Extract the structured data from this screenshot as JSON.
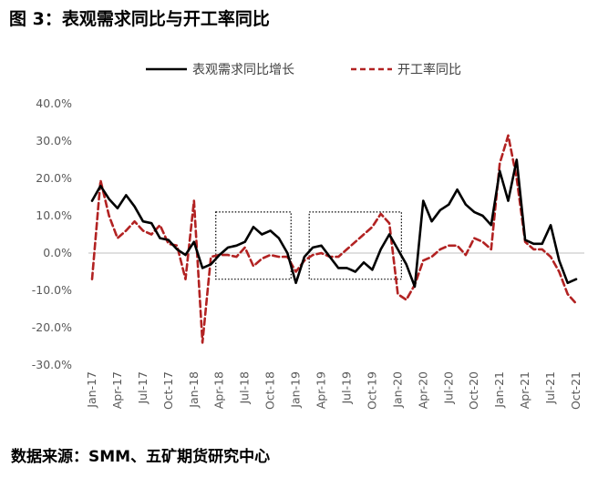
{
  "figure_title": "图 3：表观需求同比与开工率同比",
  "source_note": "数据来源：SMM、五矿期货研究中心",
  "chart_data": {
    "type": "line",
    "title": "图 3：表观需求同比与开工率同比",
    "xlabel": "",
    "ylabel": "",
    "ylim": [
      -30,
      40
    ],
    "y_ticks": [
      "-30.0%",
      "-20.0%",
      "-10.0%",
      "0.0%",
      "10.0%",
      "20.0%",
      "30.0%",
      "40.0%"
    ],
    "grid": false,
    "legend_position": "top",
    "x": [
      "Jan-17",
      "Feb-17",
      "Mar-17",
      "Apr-17",
      "May-17",
      "Jun-17",
      "Jul-17",
      "Aug-17",
      "Sep-17",
      "Oct-17",
      "Nov-17",
      "Dec-17",
      "Jan-18",
      "Feb-18",
      "Mar-18",
      "Apr-18",
      "May-18",
      "Jun-18",
      "Jul-18",
      "Aug-18",
      "Sep-18",
      "Oct-18",
      "Nov-18",
      "Dec-18",
      "Jan-19",
      "Feb-19",
      "Mar-19",
      "Apr-19",
      "May-19",
      "Jun-19",
      "Jul-19",
      "Aug-19",
      "Sep-19",
      "Oct-19",
      "Nov-19",
      "Dec-19",
      "Jan-20",
      "Feb-20",
      "Mar-20",
      "Apr-20",
      "May-20",
      "Jun-20",
      "Jul-20",
      "Aug-20",
      "Sep-20",
      "Oct-20",
      "Nov-20",
      "Dec-20",
      "Jan-21",
      "Feb-21",
      "Mar-21",
      "Apr-21",
      "May-21",
      "Jun-21",
      "Jul-21",
      "Aug-21",
      "Sep-21",
      "Oct-21"
    ],
    "x_tick_labels": [
      "Jan-17",
      "Apr-17",
      "Jul-17",
      "Oct-17",
      "Jan-18",
      "Apr-18",
      "Jul-18",
      "Oct-18",
      "Jan-19",
      "Apr-19",
      "Jul-19",
      "Oct-19",
      "Jan-20",
      "Apr-20",
      "Jul-20",
      "Oct-20",
      "Jan-21",
      "Apr-21",
      "Jul-21",
      "Oct-21"
    ],
    "series": [
      {
        "name": "表观需求同比增长",
        "color": "#000000",
        "style": "solid",
        "values": [
          14,
          18,
          14.5,
          12,
          15.5,
          12.5,
          8.5,
          8,
          4,
          3.5,
          1,
          -0.5,
          3,
          -4,
          -3,
          -0.5,
          1.5,
          2,
          3,
          7,
          5,
          6,
          4,
          0,
          -8,
          -1,
          1.5,
          2,
          -1,
          -4,
          -4,
          -5,
          -2.5,
          -4.5,
          1,
          5,
          1,
          -3,
          -9,
          14,
          8.5,
          11.5,
          13,
          17,
          13,
          11,
          10,
          7.5,
          22,
          14,
          25,
          3.5,
          2.5,
          2.5,
          7.5,
          -2,
          -8,
          -7
        ]
      },
      {
        "name": "开工率同比",
        "color": "#b22222",
        "style": "dashed",
        "values": [
          -7,
          19.5,
          10,
          4,
          6,
          8.5,
          6,
          5,
          7.5,
          2.5,
          2,
          -7,
          14,
          -24,
          -1,
          -0.5,
          -0.5,
          -1,
          1.5,
          -3.5,
          -1.5,
          -0.5,
          -1,
          -1,
          -5,
          -2,
          -0.5,
          0,
          -1,
          -1,
          1,
          3,
          5,
          7,
          10.5,
          8,
          -11,
          -12.5,
          -8.5,
          -2,
          -1,
          1,
          2,
          2,
          -0.5,
          4,
          3,
          1,
          24,
          31.5,
          20,
          3,
          1,
          1,
          -1,
          -5,
          -11,
          -13.5
        ]
      }
    ],
    "annotations": [
      {
        "kind": "dotted-box",
        "x_from": "Apr-18",
        "x_to": "Dec-18",
        "y_from": -7,
        "y_to": 11
      },
      {
        "kind": "dotted-box",
        "x_from": "Mar-19",
        "x_to": "Jan-20",
        "y_from": -7,
        "y_to": 11
      }
    ]
  }
}
